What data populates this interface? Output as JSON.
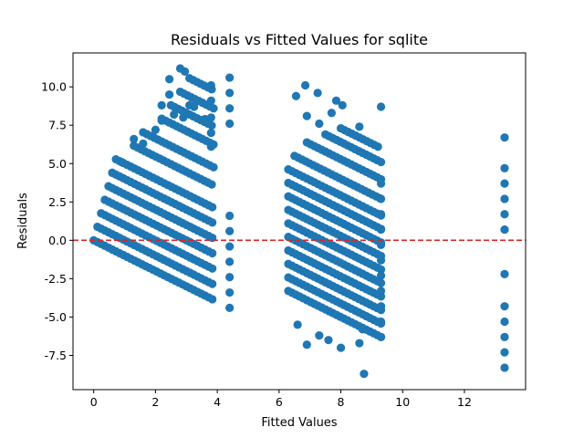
{
  "chart_data": {
    "type": "scatter",
    "title": "Residuals vs Fitted Values for sqlite",
    "xlabel": "Fitted Values",
    "ylabel": "Residuals",
    "xlim": [
      -0.67,
      13.98
    ],
    "ylim": [
      -9.73,
      12.21
    ],
    "x_ticks": [
      0,
      2,
      4,
      6,
      8,
      10,
      12
    ],
    "y_ticks": [
      -7.5,
      -5.0,
      -2.5,
      0.0,
      2.5,
      5.0,
      7.5,
      10.0
    ],
    "grid": false,
    "legend": "none",
    "marker_color": "#1f77b4",
    "reference_line": {
      "y": 0,
      "color": "#d62728",
      "style": "dashed"
    },
    "series": [
      {
        "bands": [
          {
            "x0": 0.0,
            "x1": 3.9,
            "y0": 0.0,
            "slope": -1.0
          },
          {
            "x0": 0.12,
            "x1": 3.9,
            "y0": 0.88,
            "slope": -1.0
          },
          {
            "x0": 0.24,
            "x1": 3.9,
            "y0": 1.76,
            "slope": -1.0
          },
          {
            "x0": 0.36,
            "x1": 3.9,
            "y0": 2.64,
            "slope": -1.0
          },
          {
            "x0": 0.48,
            "x1": 3.9,
            "y0": 3.52,
            "slope": -1.0
          },
          {
            "x0": 0.6,
            "x1": 3.9,
            "y0": 4.4,
            "slope": -1.0
          },
          {
            "x0": 0.72,
            "x1": 3.9,
            "y0": 5.28,
            "slope": -1.0
          },
          {
            "x0": 1.3,
            "x1": 3.9,
            "y0": 6.16,
            "slope": -1.0
          },
          {
            "x0": 1.6,
            "x1": 3.9,
            "y0": 7.04,
            "slope": -1.0
          },
          {
            "x0": 2.2,
            "x1": 3.9,
            "y0": 7.92,
            "slope": -1.0
          },
          {
            "x0": 2.5,
            "x1": 3.9,
            "y0": 8.8,
            "slope": -1.0
          },
          {
            "x0": 2.8,
            "x1": 3.9,
            "y0": 9.68,
            "slope": -1.0
          },
          {
            "x0": 3.1,
            "x1": 3.9,
            "y0": 10.56,
            "slope": -1.0
          },
          {
            "x0": 6.3,
            "x1": 9.3,
            "y0": -3.3,
            "slope": -1.0
          },
          {
            "x0": 6.3,
            "x1": 9.3,
            "y0": -2.42,
            "slope": -1.0
          },
          {
            "x0": 6.3,
            "x1": 9.3,
            "y0": -1.54,
            "slope": -1.0
          },
          {
            "x0": 6.3,
            "x1": 9.3,
            "y0": -0.66,
            "slope": -1.0
          },
          {
            "x0": 6.3,
            "x1": 9.3,
            "y0": 0.22,
            "slope": -1.0
          },
          {
            "x0": 6.3,
            "x1": 9.3,
            "y0": 1.1,
            "slope": -1.0
          },
          {
            "x0": 6.3,
            "x1": 9.3,
            "y0": 1.98,
            "slope": -1.0
          },
          {
            "x0": 6.3,
            "x1": 9.3,
            "y0": 2.86,
            "slope": -1.0
          },
          {
            "x0": 6.3,
            "x1": 9.3,
            "y0": 3.74,
            "slope": -1.0
          },
          {
            "x0": 6.3,
            "x1": 9.3,
            "y0": 4.62,
            "slope": -1.0
          },
          {
            "x0": 6.5,
            "x1": 9.3,
            "y0": 5.5,
            "slope": -1.0
          },
          {
            "x0": 6.9,
            "x1": 9.3,
            "y0": 6.38,
            "slope": -1.0
          },
          {
            "x0": 7.5,
            "x1": 9.3,
            "y0": 6.9,
            "slope": -1.0
          },
          {
            "x0": 8.0,
            "x1": 9.3,
            "y0": 7.3,
            "slope": -1.0
          }
        ],
        "band_step": 0.12,
        "points": [
          [
            0.6,
            4.4
          ],
          [
            0.9,
            5.1
          ],
          [
            1.3,
            6.6
          ],
          [
            1.6,
            6.3
          ],
          [
            2.0,
            7.2
          ],
          [
            2.2,
            7.8
          ],
          [
            2.2,
            8.8
          ],
          [
            2.45,
            9.5
          ],
          [
            2.45,
            10.5
          ],
          [
            2.8,
            11.2
          ],
          [
            2.95,
            11.0
          ],
          [
            2.6,
            8.2
          ],
          [
            2.9,
            8.0
          ],
          [
            3.1,
            8.8
          ],
          [
            3.25,
            8.7
          ],
          [
            3.6,
            7.9
          ],
          [
            3.8,
            10.1
          ],
          [
            3.8,
            9.1
          ],
          [
            3.8,
            8.0
          ],
          [
            3.8,
            7.0
          ],
          [
            3.8,
            6.1
          ],
          [
            4.4,
            10.6
          ],
          [
            4.4,
            9.6
          ],
          [
            4.4,
            8.6
          ],
          [
            4.4,
            7.6
          ],
          [
            4.4,
            1.6
          ],
          [
            4.4,
            0.6
          ],
          [
            4.4,
            -0.4
          ],
          [
            4.4,
            -1.4
          ],
          [
            4.4,
            -2.4
          ],
          [
            4.4,
            -3.4
          ],
          [
            4.4,
            -4.4
          ],
          [
            6.55,
            9.4
          ],
          [
            6.85,
            10.1
          ],
          [
            6.9,
            8.1
          ],
          [
            7.25,
            9.6
          ],
          [
            7.3,
            7.6
          ],
          [
            7.7,
            8.3
          ],
          [
            7.85,
            9.1
          ],
          [
            8.05,
            8.8
          ],
          [
            8.6,
            7.4
          ],
          [
            9.3,
            8.7
          ],
          [
            6.6,
            -5.5
          ],
          [
            6.9,
            -6.8
          ],
          [
            7.3,
            -6.2
          ],
          [
            7.6,
            -6.5
          ],
          [
            8.0,
            -7.0
          ],
          [
            8.6,
            -6.7
          ],
          [
            8.75,
            -8.7
          ],
          [
            8.7,
            -5.8
          ],
          [
            9.3,
            -6.3
          ],
          [
            9.3,
            3.7
          ],
          [
            9.3,
            2.7
          ],
          [
            9.3,
            1.7
          ],
          [
            9.3,
            0.7
          ],
          [
            9.3,
            -0.3
          ],
          [
            9.3,
            -1.3
          ],
          [
            9.3,
            -2.3
          ],
          [
            9.3,
            -3.3
          ],
          [
            9.3,
            -4.3
          ],
          [
            9.3,
            -5.3
          ],
          [
            13.3,
            6.7
          ],
          [
            13.3,
            4.7
          ],
          [
            13.3,
            3.7
          ],
          [
            13.3,
            2.7
          ],
          [
            13.3,
            1.7
          ],
          [
            13.3,
            0.7
          ],
          [
            13.3,
            -2.2
          ],
          [
            13.3,
            -4.3
          ],
          [
            13.3,
            -5.3
          ],
          [
            13.3,
            -6.3
          ],
          [
            13.3,
            -7.3
          ],
          [
            13.3,
            -8.3
          ]
        ]
      }
    ]
  }
}
